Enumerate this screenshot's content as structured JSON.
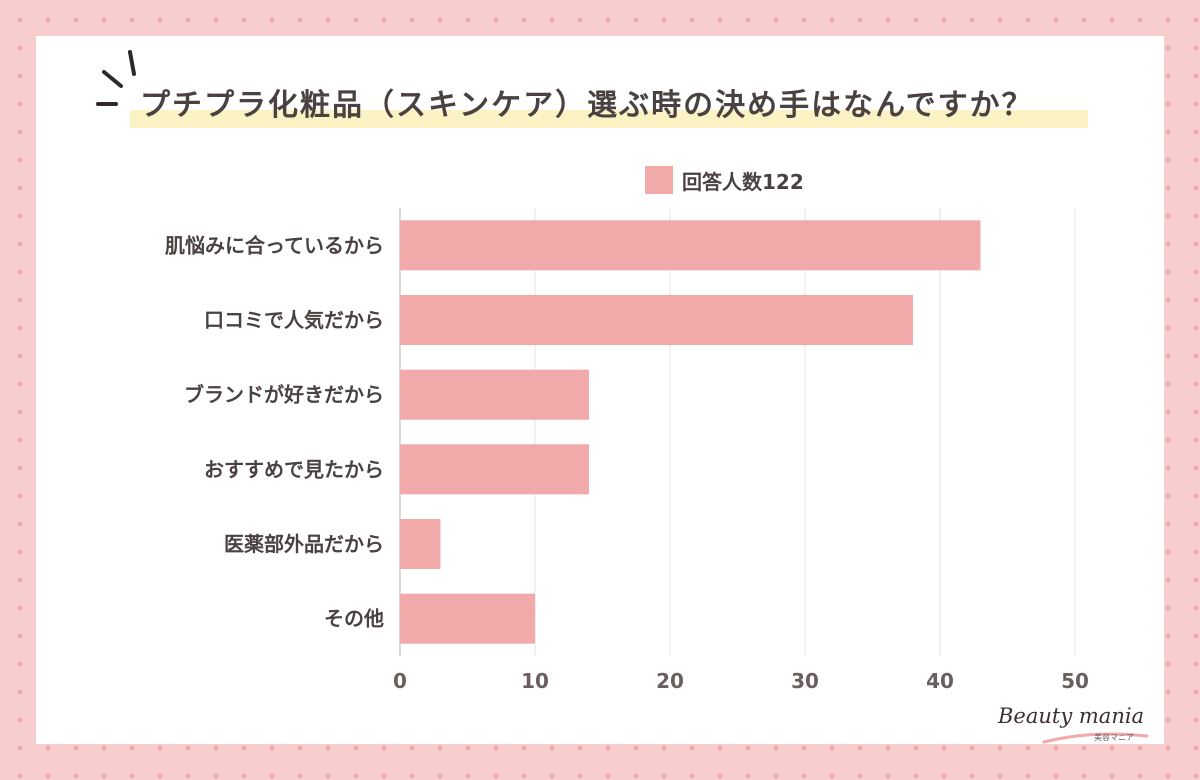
{
  "page": {
    "title": "プチプラ化粧品（スキンケア）選ぶ時の決め手はなんですか？",
    "logo_text": "Beauty mania",
    "logo_subtext": "美容マニア"
  },
  "colors": {
    "background": "#f8cdcd",
    "bar": "#f2a9a9",
    "title_highlight": "#fbf3c4",
    "text": "#4a4141",
    "axis_text": "#6b5e5e",
    "grid": "#e3e3e3"
  },
  "chart_data": {
    "type": "bar",
    "orientation": "horizontal",
    "title": "プチプラ化粧品（スキンケア）選ぶ時の決め手はなんですか？",
    "categories": [
      "肌悩みに合っているから",
      "口コミで人気だから",
      "ブランドが好きだから",
      "おすすめで見たから",
      "医薬部外品だから",
      "その他"
    ],
    "series": [
      {
        "name": "回答人数122",
        "values": [
          43,
          38,
          14,
          14,
          3,
          10
        ]
      }
    ],
    "xlim": [
      0,
      50
    ],
    "xticks": [
      "0",
      "10",
      "20",
      "30",
      "40",
      "50"
    ],
    "xlabel": "",
    "ylabel": "",
    "grid": true,
    "legend_position": "top-center"
  }
}
